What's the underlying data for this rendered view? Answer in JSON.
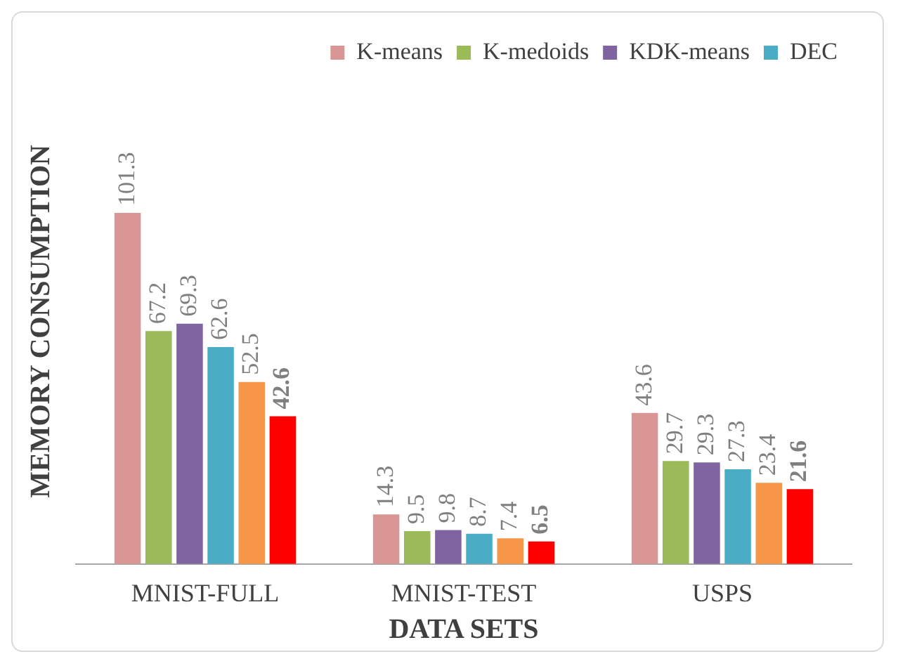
{
  "chart_data": {
    "type": "bar",
    "xlabel": "DATA SETS",
    "ylabel": "MEMORY CONSUMPTION",
    "categories": [
      "MNIST-FULL",
      "MNIST-TEST",
      "USPS"
    ],
    "series": [
      {
        "name": "K-means",
        "color": "#d99694",
        "values": [
          101.3,
          14.3,
          43.6
        ]
      },
      {
        "name": "K-medoids",
        "color": "#9bbb59",
        "values": [
          67.2,
          9.5,
          29.7
        ]
      },
      {
        "name": "KDK-means",
        "color": "#8064a2",
        "values": [
          69.3,
          9.8,
          29.3
        ]
      },
      {
        "name": "DEC",
        "color": "#4bacc6",
        "values": [
          62.6,
          8.7,
          27.3
        ]
      },
      {
        "color": "#f79646",
        "values": [
          52.5,
          7.4,
          23.4
        ]
      },
      {
        "color": "#ff0000",
        "values": [
          42.6,
          6.5,
          21.6
        ]
      }
    ],
    "data_labels": true,
    "legend": "top right",
    "grid": false
  }
}
